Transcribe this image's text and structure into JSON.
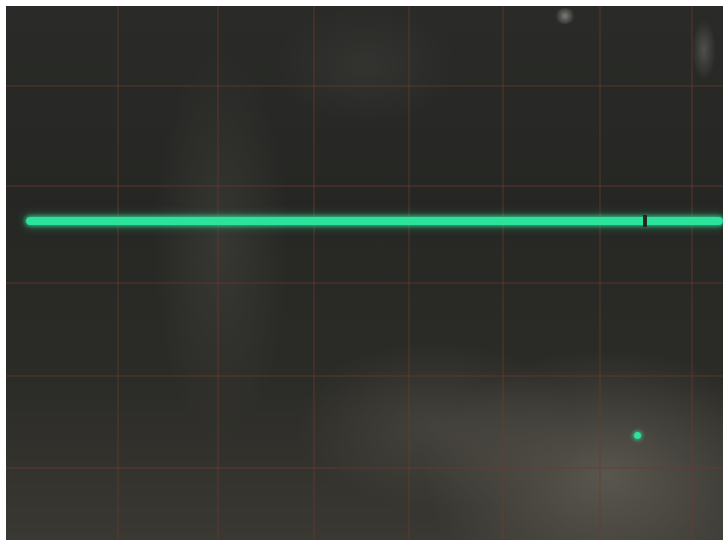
{
  "scene": {
    "subject": "oscilloscope-screen",
    "trace_color": "#2be39a",
    "graticule_color": "#6a3a2a",
    "screen_color": "#262724",
    "graticule_divisions": {
      "horizontal": 7,
      "vertical": 6
    }
  }
}
